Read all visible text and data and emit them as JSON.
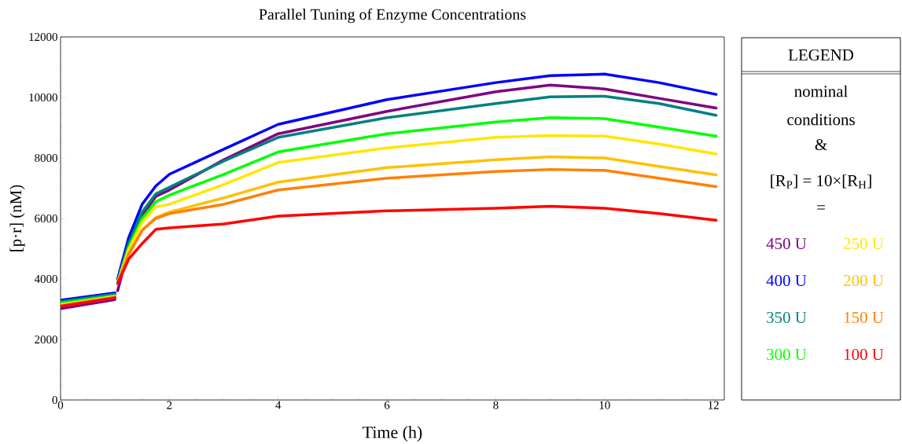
{
  "chart_data": {
    "type": "line",
    "title": "Parallel Tuning of Enzyme Concentrations",
    "xlabel": "Time (h)",
    "ylabel": "[p·r] (nM)",
    "legend_title": "LEGEND",
    "annotations": [
      "nominal",
      "conditions",
      "&",
      "[R$_{P}$] = 10×[R$_{H}$]",
      "="
    ],
    "x": [
      0,
      1,
      1.02,
      1.05,
      1.25,
      1.5,
      1.75,
      2,
      3,
      4,
      6,
      8,
      9,
      10,
      11,
      12.05
    ],
    "series": [
      {
        "name": "450 U",
        "color": "#800080",
        "values": [
          3020,
          3320,
          null,
          3610,
          4990,
          6080,
          6730,
          6940,
          7940,
          8800,
          9540,
          10190,
          10410,
          10280,
          9970,
          9650
        ]
      },
      {
        "name": "400 U",
        "color": "#0000ff",
        "values": [
          3300,
          3540,
          null,
          4000,
          5350,
          6470,
          7070,
          7460,
          8290,
          9110,
          9930,
          10490,
          10720,
          10770,
          10490,
          10100
        ]
      },
      {
        "name": "350 U",
        "color": "#008080",
        "values": [
          3250,
          3500,
          null,
          3920,
          5170,
          6210,
          6810,
          7030,
          7900,
          8680,
          9330,
          9800,
          10020,
          10040,
          9800,
          9410
        ]
      },
      {
        "name": "300 U",
        "color": "#00ff00",
        "values": [
          3200,
          3450,
          null,
          3900,
          5040,
          6000,
          6550,
          6770,
          7460,
          8200,
          8800,
          9190,
          9330,
          9300,
          9020,
          8720
        ]
      },
      {
        "name": "250 U",
        "color": "#ffe600",
        "values": [
          3150,
          3420,
          null,
          3880,
          4960,
          5870,
          6380,
          6470,
          7120,
          7850,
          8330,
          8680,
          8740,
          8720,
          8460,
          8130
        ]
      },
      {
        "name": "200 U",
        "color": "#ffc000",
        "values": [
          3120,
          3400,
          null,
          3870,
          4830,
          5610,
          6030,
          6210,
          6680,
          7200,
          7680,
          7940,
          8040,
          8000,
          7720,
          7440
        ]
      },
      {
        "name": "150 U",
        "color": "#ff8000",
        "values": [
          3100,
          3390,
          null,
          3860,
          4800,
          5610,
          6000,
          6160,
          6470,
          6940,
          7330,
          7550,
          7620,
          7590,
          7330,
          7050
        ]
      },
      {
        "name": "100 U",
        "color": "#ff0000",
        "values": [
          3100,
          3380,
          null,
          3850,
          4650,
          5170,
          5640,
          5690,
          5820,
          6080,
          6250,
          6340,
          6400,
          6340,
          6160,
          5940
        ]
      }
    ],
    "xlim": [
      0,
      12.2
    ],
    "ylim": [
      0,
      12000
    ],
    "xticks": [
      0,
      2,
      4,
      6,
      8,
      10,
      12
    ],
    "yticks": [
      0,
      2000,
      4000,
      6000,
      8000,
      10000,
      12000
    ],
    "legend": "right",
    "line_style": "solid"
  }
}
